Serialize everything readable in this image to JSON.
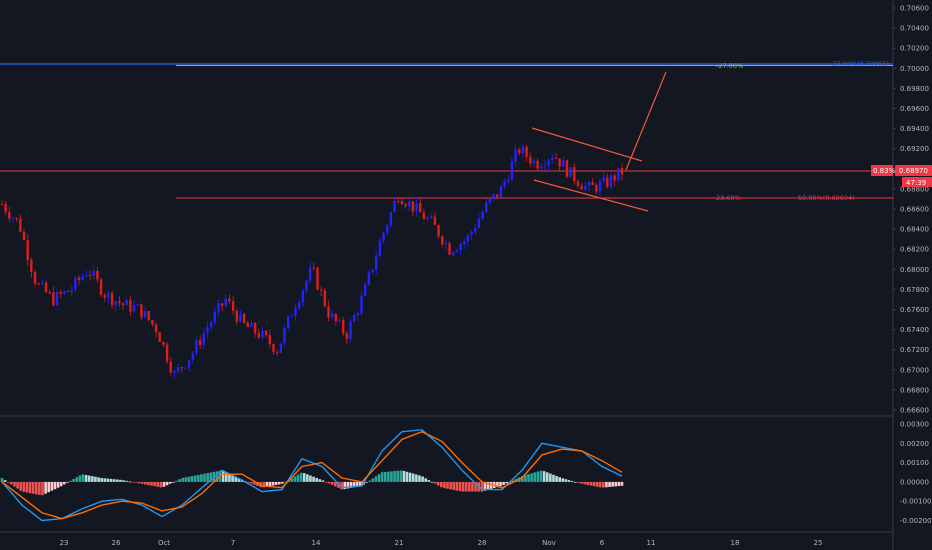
{
  "colors": {
    "background": "#131722",
    "grid": "#1e222d",
    "axis_text": "#b2b5be",
    "up_candle": "#2323ff",
    "down_candle": "#e01d1d",
    "macd_line": "#2196f3",
    "signal_line": "#ff6d00",
    "hist_pos_strong": "#26a69a",
    "hist_pos_weak": "#b2dfdb",
    "hist_neg_strong": "#ef5350",
    "hist_neg_weak": "#ffcdd2",
    "fib_line": "#f23645",
    "fib_green": "#8bc34a",
    "fib_blue": "#2962ff",
    "channel": "#f05a3a",
    "price_badge": "#f23645"
  },
  "price_axis": {
    "labels": [
      "0.70600",
      "0.70400",
      "0.70200",
      "0.70000",
      "0.69800",
      "0.69600",
      "0.69400",
      "0.69200",
      "0.69000",
      "0.68800",
      "0.68600",
      "0.68400",
      "0.68200",
      "0.68000",
      "0.67800",
      "0.67600",
      "0.67400",
      "0.67200",
      "0.67000",
      "0.66800",
      "0.66600"
    ],
    "current_price": "0.68970",
    "change_pct": "0.83%",
    "countdown": "47:39"
  },
  "macd_axis": {
    "labels": [
      "0.00300",
      "0.00200",
      "0.00100",
      "0.00000",
      "-0.00100",
      "-0.00200"
    ]
  },
  "time_axis": {
    "labels": [
      "23",
      "26",
      "Oct",
      "7",
      "14",
      "21",
      "28",
      "Nov",
      "6",
      "11",
      "18",
      "25"
    ]
  },
  "fib_labels": {
    "top_pct": "-27.00%",
    "top_level": "-27.00%(0.70005)",
    "mid_pct": "23.60%",
    "mid_level": "50.00%(0.68694)"
  },
  "chart_data": [
    {
      "type": "candlestick",
      "title": "",
      "x_labels": [
        "23",
        "26",
        "Oct",
        "7",
        "14",
        "21",
        "28",
        "Nov",
        "6",
        "11",
        "18",
        "25"
      ],
      "ylim": [
        0.6656,
        0.707
      ],
      "grid": false,
      "current_price": 0.6897,
      "horizontal_levels": [
        0.70005,
        0.6897,
        0.68694
      ],
      "close_path": [
        {
          "x": "start",
          "y": 0.6865
        },
        {
          "x": "",
          "y": 0.6845
        },
        {
          "x": "",
          "y": 0.6785
        },
        {
          "x": "",
          "y": 0.677
        },
        {
          "x": "23",
          "y": 0.678
        },
        {
          "x": "",
          "y": 0.68
        },
        {
          "x": "",
          "y": 0.6775
        },
        {
          "x": "26",
          "y": 0.6765
        },
        {
          "x": "",
          "y": 0.676
        },
        {
          "x": "",
          "y": 0.674
        },
        {
          "x": "Oct",
          "y": 0.6695
        },
        {
          "x": "",
          "y": 0.6715
        },
        {
          "x": "",
          "y": 0.6745
        },
        {
          "x": "7",
          "y": 0.677
        },
        {
          "x": "",
          "y": 0.6745
        },
        {
          "x": "",
          "y": 0.6735
        },
        {
          "x": "",
          "y": 0.672
        },
        {
          "x": "14",
          "y": 0.6765
        },
        {
          "x": "",
          "y": 0.68
        },
        {
          "x": "",
          "y": 0.6755
        },
        {
          "x": "",
          "y": 0.6735
        },
        {
          "x": "",
          "y": 0.6775
        },
        {
          "x": "",
          "y": 0.683
        },
        {
          "x": "21",
          "y": 0.6875
        },
        {
          "x": "",
          "y": 0.686
        },
        {
          "x": "",
          "y": 0.6845
        },
        {
          "x": "",
          "y": 0.682
        },
        {
          "x": "28",
          "y": 0.683
        },
        {
          "x": "",
          "y": 0.686
        },
        {
          "x": "",
          "y": 0.688
        },
        {
          "x": "Nov",
          "y": 0.692
        },
        {
          "x": "",
          "y": 0.6905
        },
        {
          "x": "",
          "y": 0.6915
        },
        {
          "x": "",
          "y": 0.6895
        },
        {
          "x": "6",
          "y": 0.688
        },
        {
          "x": "",
          "y": 0.6885
        },
        {
          "x": "",
          "y": 0.6897
        }
      ]
    },
    {
      "type": "line",
      "title": "",
      "ylim": [
        -0.0025,
        0.0033
      ],
      "series": [
        {
          "values": [
            0.0,
            -0.0012,
            -0.002,
            -0.0019,
            -0.0014,
            -0.001,
            -0.0009,
            -0.0012,
            -0.0018,
            -0.0012,
            -0.0003,
            0.0006,
            0.0001,
            -0.0005,
            -0.0004,
            0.0012,
            0.0008,
            -0.0003,
            -0.0002,
            0.0016,
            0.0026,
            0.0027,
            0.0018,
            0.0006,
            -0.0004,
            -0.0004,
            0.0006,
            0.002,
            0.0018,
            0.0016,
            0.0008,
            0.0003
          ]
        },
        {
          "values": [
            0.0,
            -0.0008,
            -0.0016,
            -0.0019,
            -0.0016,
            -0.0012,
            -0.001,
            -0.0011,
            -0.0015,
            -0.0013,
            -0.0006,
            0.0004,
            0.0004,
            -0.0002,
            -0.0003,
            0.0008,
            0.001,
            0.0002,
            0.0,
            0.0011,
            0.0022,
            0.0026,
            0.0021,
            0.001,
            0.0,
            -0.0003,
            0.0002,
            0.0014,
            0.0017,
            0.0016,
            0.0011,
            0.0005
          ]
        }
      ],
      "histogram": [
        0.0002,
        -0.0005,
        -0.0007,
        -0.0002,
        0.0004,
        0.0002,
        0.0001,
        -0.0001,
        -0.0003,
        0.0002,
        0.0004,
        0.0006,
        0.0001,
        -0.0003,
        -0.0001,
        0.0005,
        0.0001,
        -0.0004,
        -0.0002,
        0.0005,
        0.0006,
        0.0003,
        -0.0003,
        -0.0005,
        -0.0005,
        -0.0002,
        0.0003,
        0.0006,
        0.0002,
        -0.0001,
        -0.0003,
        -0.0002
      ]
    }
  ]
}
